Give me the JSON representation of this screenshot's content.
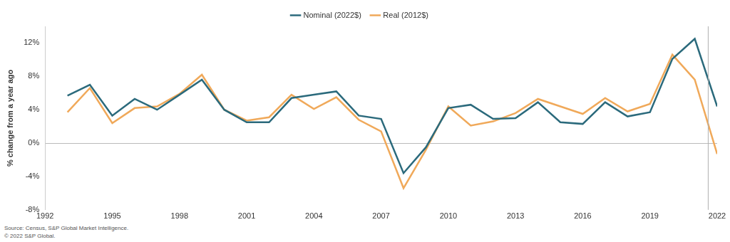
{
  "chart_data": {
    "type": "line",
    "y_label": "% change from a year ago",
    "notes": [
      "Source: Census, S&P Global Market Intelligence.",
      "© 2022 S&P Global."
    ],
    "x": [
      1993,
      1994,
      1995,
      1996,
      1997,
      1998,
      1999,
      2000,
      2001,
      2002,
      2003,
      2004,
      2005,
      2006,
      2007,
      2008,
      2009,
      2010,
      2011,
      2012,
      2013,
      2014,
      2015,
      2016,
      2017,
      2018,
      2019,
      2020,
      2021,
      2022
    ],
    "series": [
      {
        "name": "Nominal (2022$)",
        "color": "#2b6a7c",
        "values": [
          5.7,
          7.0,
          3.3,
          5.3,
          4.0,
          5.8,
          7.6,
          4.0,
          2.5,
          2.5,
          5.4,
          5.8,
          6.2,
          3.3,
          2.9,
          -3.6,
          -0.5,
          4.2,
          4.6,
          2.9,
          3.0,
          4.9,
          2.5,
          2.3,
          4.9,
          3.2,
          3.7,
          10.1,
          12.5,
          4.4
        ]
      },
      {
        "name": "Real (2012$)",
        "color": "#f0a95a",
        "values": [
          3.7,
          6.6,
          2.4,
          4.2,
          4.4,
          5.9,
          8.2,
          4.0,
          2.7,
          3.1,
          5.8,
          4.1,
          5.5,
          2.8,
          1.4,
          -5.4,
          -0.8,
          4.4,
          2.1,
          2.6,
          3.6,
          5.3,
          4.4,
          3.5,
          5.4,
          3.8,
          4.7,
          10.6,
          7.6,
          -1.3
        ]
      }
    ],
    "vertical_line": 2021.6,
    "xlim": [
      1992,
      2022
    ],
    "xticks": [
      1992,
      1995,
      1998,
      2001,
      2004,
      2007,
      2010,
      2013,
      2016,
      2019,
      2022
    ],
    "ylim": [
      -8,
      14
    ],
    "yticks": [
      {
        "value": -8,
        "label": "-8%"
      },
      {
        "value": -4,
        "label": "-4%"
      },
      {
        "value": 0,
        "label": "0%"
      },
      {
        "value": 4,
        "label": "4%"
      },
      {
        "value": 8,
        "label": "8%"
      },
      {
        "value": 12,
        "label": "12%"
      }
    ],
    "grid": false,
    "legend": "top"
  }
}
